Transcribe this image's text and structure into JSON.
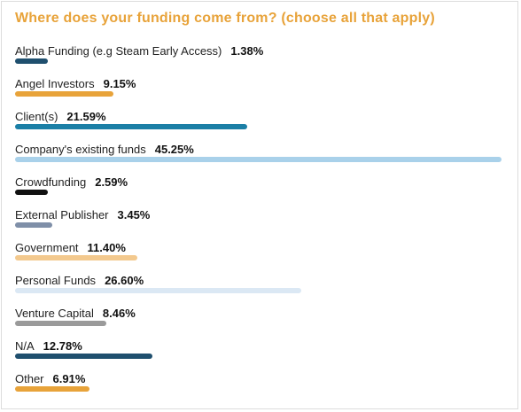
{
  "chart_data": {
    "type": "bar",
    "orientation": "horizontal",
    "title": "Where does your funding come from? (choose all that apply)",
    "xlabel": "",
    "ylabel": "",
    "xlim": [
      0,
      45.25
    ],
    "categories": [
      "Alpha Funding (e.g Steam Early Access)",
      "Angel Investors",
      "Client(s)",
      "Company's existing funds",
      "Crowdfunding",
      "External Publisher",
      "Government",
      "Personal Funds",
      "Venture Capital",
      "N/A",
      "Other"
    ],
    "values": [
      1.38,
      9.15,
      21.59,
      45.25,
      2.59,
      3.45,
      11.4,
      26.6,
      8.46,
      12.78,
      6.91
    ],
    "value_labels": [
      "1.38%",
      "9.15%",
      "21.59%",
      "45.25%",
      "2.59%",
      "3.45%",
      "11.40%",
      "26.60%",
      "8.46%",
      "12.78%",
      "6.91%"
    ],
    "colors": [
      "#1f4f6e",
      "#e8a33a",
      "#1b7fa6",
      "#a9d1ea",
      "#111111",
      "#7f8fa8",
      "#f3c98e",
      "#dbe8f4",
      "#9a9a9a",
      "#1f4f6e",
      "#e8a33a"
    ],
    "grid": false,
    "legend": "none"
  }
}
